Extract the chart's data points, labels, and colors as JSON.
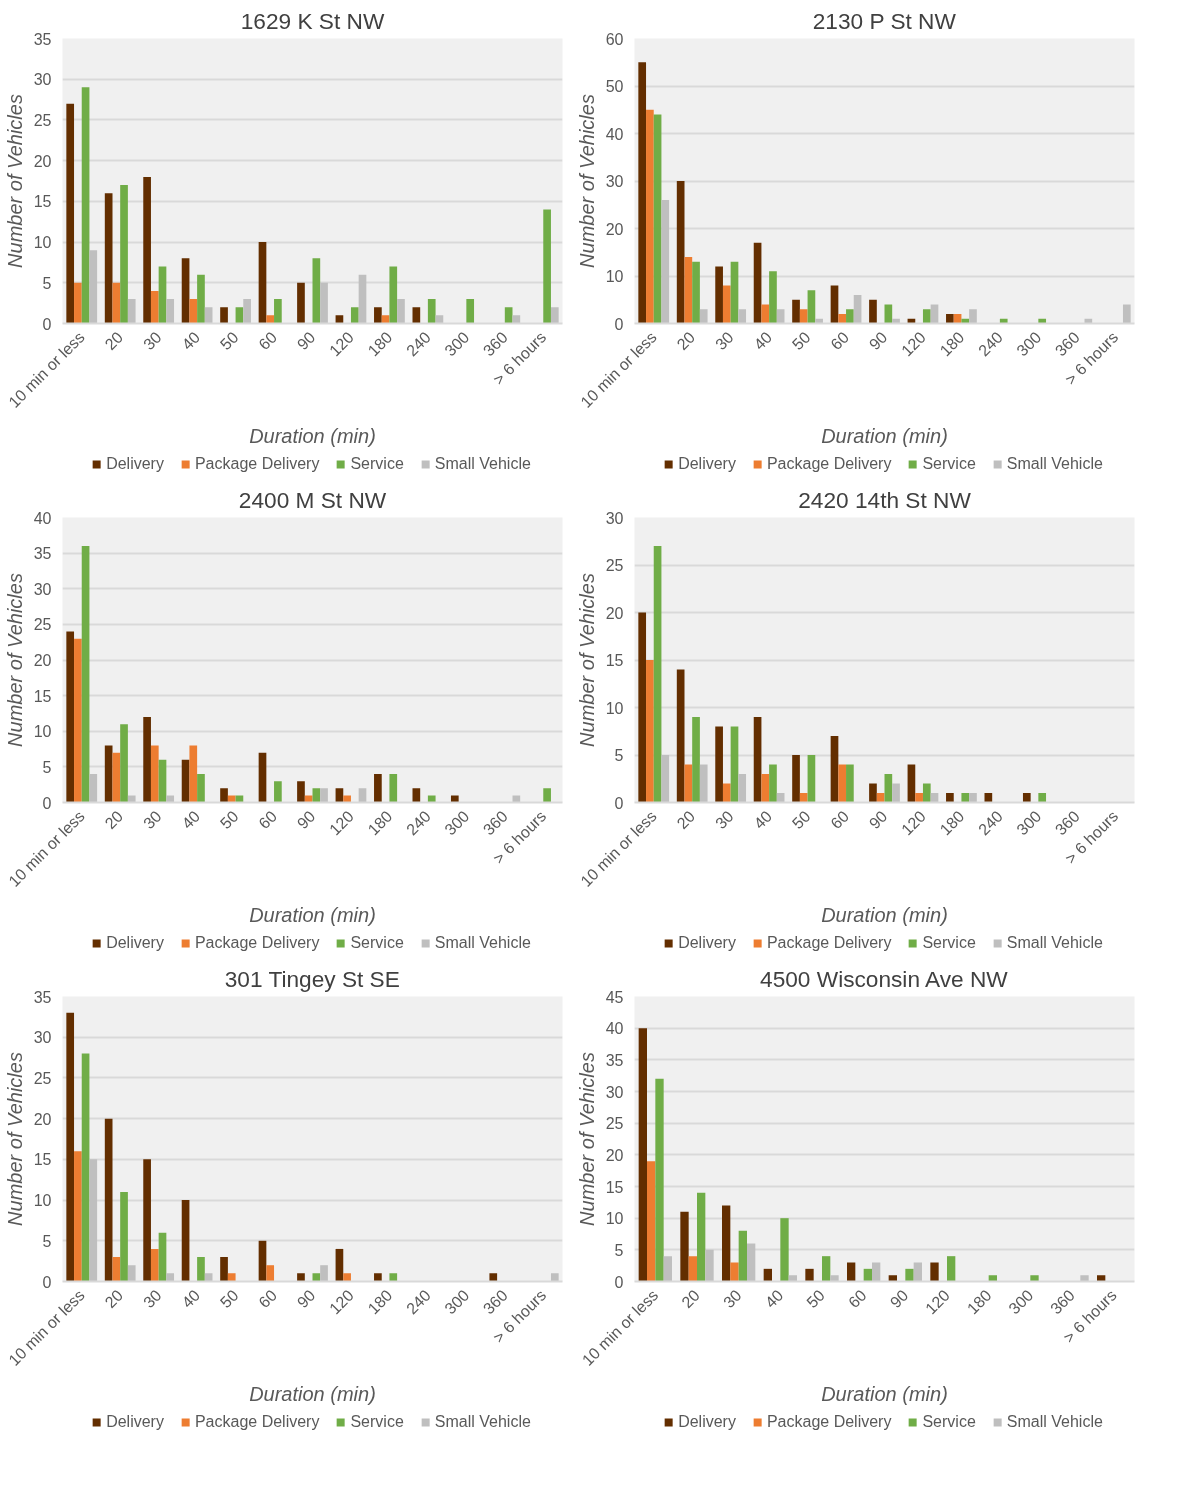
{
  "chart_data": [
    {
      "type": "bar",
      "title": "1629 K St NW",
      "xlabel": "Duration (min)",
      "ylabel": "Number of Vehicles",
      "legend": "bottom",
      "grid": "y",
      "categories": [
        "10 min or less",
        "20",
        "30",
        "40",
        "50",
        "60",
        "90",
        "120",
        "180",
        "240",
        "300",
        "360",
        "> 6 hours"
      ],
      "ylim": [
        0,
        35
      ],
      "yticks": [
        0,
        5,
        10,
        15,
        20,
        25,
        30,
        35
      ],
      "series": [
        {
          "name": "Delivery",
          "color": "#632e00",
          "values": [
            27,
            16,
            18,
            8,
            2,
            10,
            5,
            1,
            2,
            2,
            0,
            0,
            0
          ]
        },
        {
          "name": "Package Delivery",
          "color": "#ed7d31",
          "values": [
            5,
            5,
            4,
            3,
            0,
            1,
            0,
            0,
            1,
            0,
            0,
            0,
            0
          ]
        },
        {
          "name": "Service",
          "color": "#70ad47",
          "values": [
            29,
            17,
            7,
            6,
            2,
            3,
            8,
            2,
            7,
            3,
            3,
            2,
            14
          ]
        },
        {
          "name": "Small Vehicle",
          "color": "#bfbfbf",
          "values": [
            9,
            3,
            3,
            2,
            3,
            0,
            5,
            6,
            3,
            1,
            0,
            1,
            2
          ]
        }
      ]
    },
    {
      "type": "bar",
      "title": "2130 P St NW",
      "xlabel": "Duration (min)",
      "ylabel": "Number of Vehicles",
      "legend": "bottom",
      "grid": "y",
      "categories": [
        "10 min or less",
        "20",
        "30",
        "40",
        "50",
        "60",
        "90",
        "120",
        "180",
        "240",
        "300",
        "360",
        "> 6 hours"
      ],
      "ylim": [
        0,
        60
      ],
      "yticks": [
        0,
        10,
        20,
        30,
        40,
        50,
        60
      ],
      "series": [
        {
          "name": "Delivery",
          "color": "#632e00",
          "values": [
            55,
            30,
            12,
            17,
            5,
            8,
            5,
            1,
            2,
            0,
            0,
            0,
            0
          ]
        },
        {
          "name": "Package Delivery",
          "color": "#ed7d31",
          "values": [
            45,
            14,
            8,
            4,
            3,
            2,
            0,
            0,
            2,
            0,
            0,
            0,
            0
          ]
        },
        {
          "name": "Service",
          "color": "#70ad47",
          "values": [
            44,
            13,
            13,
            11,
            7,
            3,
            4,
            3,
            1,
            1,
            1,
            0,
            0
          ]
        },
        {
          "name": "Small Vehicle",
          "color": "#bfbfbf",
          "values": [
            26,
            3,
            3,
            3,
            1,
            6,
            1,
            4,
            3,
            0,
            0,
            1,
            4
          ]
        }
      ]
    },
    {
      "type": "bar",
      "title": "2400 M St NW",
      "xlabel": "Duration (min)",
      "ylabel": "Number of Vehicles",
      "legend": "bottom",
      "grid": "y",
      "categories": [
        "10 min or less",
        "20",
        "30",
        "40",
        "50",
        "60",
        "90",
        "120",
        "180",
        "240",
        "300",
        "360",
        "> 6 hours"
      ],
      "ylim": [
        0,
        40
      ],
      "yticks": [
        0,
        5,
        10,
        15,
        20,
        25,
        30,
        35,
        40
      ],
      "series": [
        {
          "name": "Delivery",
          "color": "#632e00",
          "values": [
            24,
            8,
            12,
            6,
            2,
            7,
            3,
            2,
            4,
            2,
            1,
            0,
            0
          ]
        },
        {
          "name": "Package Delivery",
          "color": "#ed7d31",
          "values": [
            23,
            7,
            8,
            8,
            1,
            0,
            1,
            1,
            0,
            0,
            0,
            0,
            0
          ]
        },
        {
          "name": "Service",
          "color": "#70ad47",
          "values": [
            36,
            11,
            6,
            4,
            1,
            3,
            2,
            0,
            4,
            1,
            0,
            0,
            2
          ]
        },
        {
          "name": "Small Vehicle",
          "color": "#bfbfbf",
          "values": [
            4,
            1,
            1,
            0,
            0,
            0,
            2,
            2,
            0,
            0,
            0,
            1,
            0
          ]
        }
      ]
    },
    {
      "type": "bar",
      "title": "2420 14th St NW",
      "xlabel": "Duration (min)",
      "ylabel": "Number of Vehicles",
      "legend": "bottom",
      "grid": "y",
      "categories": [
        "10 min or less",
        "20",
        "30",
        "40",
        "50",
        "60",
        "90",
        "120",
        "180",
        "240",
        "300",
        "360",
        "> 6 hours"
      ],
      "ylim": [
        0,
        30
      ],
      "yticks": [
        0,
        5,
        10,
        15,
        20,
        25,
        30
      ],
      "series": [
        {
          "name": "Delivery",
          "color": "#632e00",
          "values": [
            20,
            14,
            8,
            9,
            5,
            7,
            2,
            4,
            1,
            1,
            1,
            0,
            0
          ]
        },
        {
          "name": "Package Delivery",
          "color": "#ed7d31",
          "values": [
            15,
            4,
            2,
            3,
            1,
            4,
            1,
            1,
            0,
            0,
            0,
            0,
            0
          ]
        },
        {
          "name": "Service",
          "color": "#70ad47",
          "values": [
            27,
            9,
            8,
            4,
            5,
            4,
            3,
            2,
            1,
            0,
            1,
            0,
            0
          ]
        },
        {
          "name": "Small Vehicle",
          "color": "#bfbfbf",
          "values": [
            5,
            4,
            3,
            1,
            0,
            0,
            2,
            1,
            1,
            0,
            0,
            0,
            0
          ]
        }
      ]
    },
    {
      "type": "bar",
      "title": "301 Tingey St SE",
      "xlabel": "Duration (min)",
      "ylabel": "Number of Vehicles",
      "legend": "bottom",
      "grid": "y",
      "categories": [
        "10 min or less",
        "20",
        "30",
        "40",
        "50",
        "60",
        "90",
        "120",
        "180",
        "240",
        "300",
        "360",
        "> 6 hours"
      ],
      "ylim": [
        0,
        35
      ],
      "yticks": [
        0,
        5,
        10,
        15,
        20,
        25,
        30,
        35
      ],
      "series": [
        {
          "name": "Delivery",
          "color": "#632e00",
          "values": [
            33,
            20,
            15,
            10,
            3,
            5,
            1,
            4,
            1,
            0,
            0,
            1,
            0
          ]
        },
        {
          "name": "Package Delivery",
          "color": "#ed7d31",
          "values": [
            16,
            3,
            4,
            0,
            1,
            2,
            0,
            1,
            0,
            0,
            0,
            0,
            0
          ]
        },
        {
          "name": "Service",
          "color": "#70ad47",
          "values": [
            28,
            11,
            6,
            3,
            0,
            0,
            1,
            0,
            1,
            0,
            0,
            0,
            0
          ]
        },
        {
          "name": "Small Vehicle",
          "color": "#bfbfbf",
          "values": [
            15,
            2,
            1,
            1,
            0,
            0,
            2,
            0,
            0,
            0,
            0,
            0,
            1
          ]
        }
      ]
    },
    {
      "type": "bar",
      "title": "4500 Wisconsin Ave NW",
      "xlabel": "Duration (min)",
      "ylabel": "Number of Vehicles",
      "legend": "bottom",
      "grid": "y",
      "categories": [
        "10 min or less",
        "20",
        "30",
        "40",
        "50",
        "60",
        "90",
        "120",
        "180",
        "300",
        "360",
        "> 6 hours"
      ],
      "ylim": [
        0,
        45
      ],
      "yticks": [
        0,
        5,
        10,
        15,
        20,
        25,
        30,
        35,
        40,
        45
      ],
      "series": [
        {
          "name": "Delivery",
          "color": "#632e00",
          "values": [
            40,
            11,
            12,
            2,
            2,
            3,
            1,
            3,
            0,
            0,
            0,
            1
          ]
        },
        {
          "name": "Package Delivery",
          "color": "#ed7d31",
          "values": [
            19,
            4,
            3,
            0,
            0,
            0,
            0,
            0,
            0,
            0,
            0,
            0
          ]
        },
        {
          "name": "Service",
          "color": "#70ad47",
          "values": [
            32,
            14,
            8,
            10,
            4,
            2,
            2,
            4,
            1,
            1,
            0,
            0
          ]
        },
        {
          "name": "Small Vehicle",
          "color": "#bfbfbf",
          "values": [
            4,
            5,
            6,
            1,
            1,
            3,
            3,
            0,
            0,
            0,
            1,
            0
          ]
        }
      ]
    }
  ]
}
